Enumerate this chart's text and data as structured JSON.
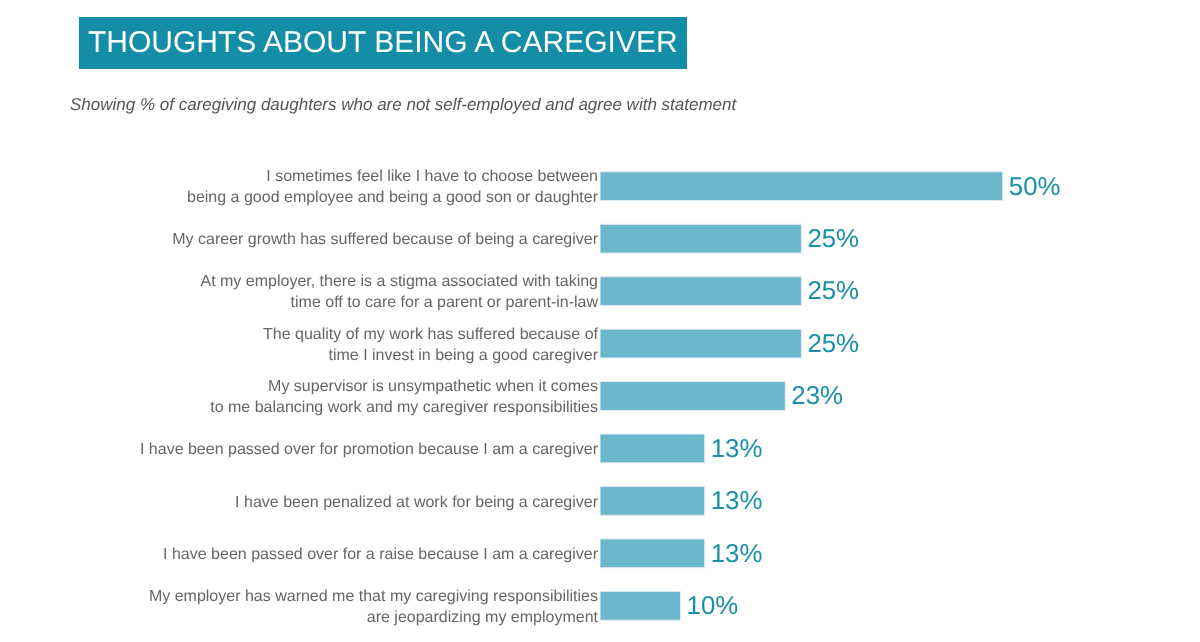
{
  "chart_data": {
    "type": "bar",
    "orientation": "horizontal",
    "title": "THOUGHTS ABOUT BEING A CAREGIVER",
    "subtitle": "Showing % of caregiving daughters who are not self-employed and agree with statement",
    "categories": [
      "I sometimes feel like I have to choose between\nbeing a good employee and being a good son or daughter",
      "My career growth has suffered because of being a caregiver",
      "At my employer, there is a stigma associated with taking\ntime off to care for a parent or parent-in-law",
      "The quality of my work has suffered because of\ntime I invest in being a good caregiver",
      "My supervisor is unsympathetic when it comes\nto me balancing work and my caregiver responsibilities",
      "I have been passed over for promotion because I am a caregiver",
      "I have been penalized at work for being a caregiver",
      "I have been passed over for a raise because I am a caregiver",
      "My employer has warned me that my caregiving responsibilities\nare jeopardizing my employment"
    ],
    "values": [
      50,
      25,
      25,
      25,
      23,
      13,
      13,
      13,
      10
    ],
    "value_labels": [
      "50%",
      "25%",
      "25%",
      "25%",
      "23%",
      "13%",
      "13%",
      "13%",
      "10%"
    ],
    "color": "#6bb8cc",
    "tick_labels": "y"
  }
}
